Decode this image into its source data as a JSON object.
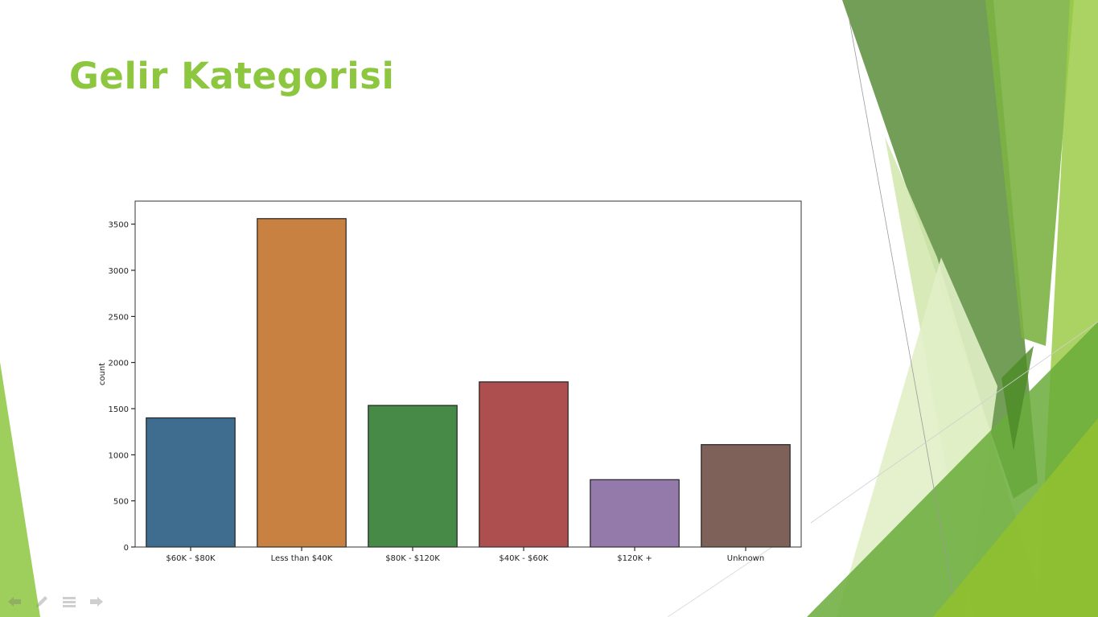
{
  "slide": {
    "title": "Gelir Kategorisi",
    "title_color": "#8dc63f"
  },
  "nav": {
    "icons": [
      "back-arrow-icon",
      "pen-icon",
      "slide-list-icon",
      "forward-arrow-icon"
    ]
  },
  "chart_data": {
    "type": "bar",
    "title": "",
    "xlabel": "",
    "ylabel": "count",
    "categories": [
      "$60K - $80K",
      "Less than $40K",
      "$80K - $120K",
      "$40K - $60K",
      "$120K +",
      "Unknown"
    ],
    "values": [
      1400,
      3560,
      1535,
      1790,
      730,
      1110
    ],
    "colors": [
      "#3f6d90",
      "#c98142",
      "#478a47",
      "#ad4e4f",
      "#9479ab",
      "#7e6159"
    ],
    "ylim": [
      0,
      3750
    ],
    "yticks": [
      0,
      500,
      1000,
      1500,
      2000,
      2500,
      3000,
      3500
    ],
    "grid": false,
    "legend": "none"
  }
}
